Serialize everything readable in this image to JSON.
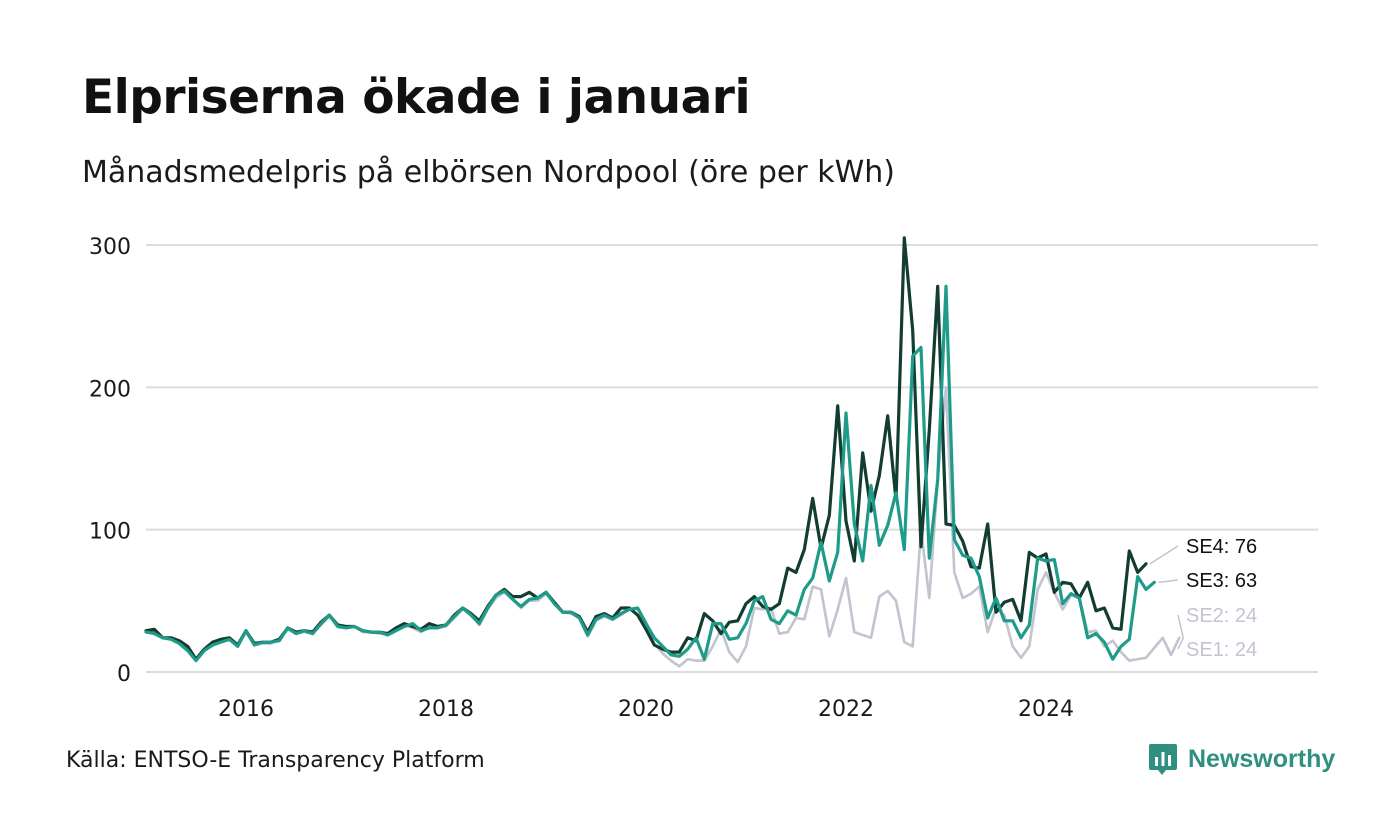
{
  "title": "Elpriserna ökade i januari",
  "subtitle": "Månadsmedelpris på elbörsen Nordpool (öre per kWh)",
  "source": "Källa: ENTSO-E Transparency Platform",
  "brand": {
    "name": "Newsworthy",
    "icon": "newsworthy-logo-icon",
    "color": "#2f8f80"
  },
  "chart_data": {
    "type": "line",
    "x_start": "2015-01",
    "x_interval": "month",
    "x_ticks": [
      "2016",
      "2018",
      "2020",
      "2022",
      "2024"
    ],
    "y_ticks": [
      "0",
      "100",
      "200",
      "300"
    ],
    "ylim": [
      0,
      300
    ],
    "grid": true,
    "legend": "direct labels at line ends",
    "series": [
      {
        "name": "SE2",
        "end_label": "SE2: 24",
        "color": "#c4c4d0",
        "values": [
          29,
          28,
          24,
          24,
          21,
          15,
          8,
          15,
          19,
          21,
          23,
          18,
          28,
          19,
          20,
          20,
          23,
          30,
          27,
          28,
          27,
          33,
          39,
          33,
          31,
          32,
          28,
          28,
          27,
          27,
          30,
          33,
          31,
          28,
          32,
          31,
          32,
          38,
          44,
          41,
          33,
          44,
          52,
          56,
          51,
          45,
          50,
          50,
          55,
          48,
          42,
          41,
          38,
          25,
          36,
          39,
          37,
          40,
          44,
          44,
          35,
          20,
          13,
          8,
          4,
          9,
          8,
          8,
          18,
          30,
          14,
          7,
          18,
          45,
          44,
          45,
          27,
          28,
          38,
          37,
          60,
          58,
          25,
          44,
          66,
          28,
          26,
          24,
          53,
          57,
          50,
          21,
          18,
          100,
          52,
          135,
          200,
          70,
          52,
          55,
          60,
          28,
          45,
          40,
          18,
          10,
          18,
          58,
          70,
          56,
          44,
          54,
          52,
          28,
          29,
          18,
          22,
          14,
          8,
          9,
          10,
          17,
          24,
          12,
          24
        ]
      },
      {
        "name": "SE1",
        "end_label": "SE1: 24",
        "color": "#c4c4d0",
        "values": [
          29,
          28,
          24,
          24,
          21,
          15,
          8,
          15,
          19,
          21,
          23,
          18,
          28,
          19,
          20,
          20,
          23,
          30,
          27,
          28,
          27,
          33,
          39,
          33,
          31,
          32,
          28,
          28,
          27,
          27,
          30,
          33,
          31,
          28,
          32,
          31,
          32,
          38,
          44,
          41,
          33,
          44,
          52,
          56,
          51,
          45,
          50,
          50,
          55,
          48,
          42,
          41,
          38,
          25,
          36,
          39,
          37,
          40,
          44,
          44,
          35,
          20,
          13,
          8,
          4,
          9,
          8,
          8,
          18,
          30,
          14,
          7,
          18,
          45,
          44,
          45,
          27,
          28,
          38,
          37,
          60,
          58,
          25,
          44,
          66,
          28,
          26,
          24,
          53,
          57,
          50,
          21,
          18,
          100,
          52,
          135,
          200,
          70,
          52,
          55,
          60,
          28,
          45,
          40,
          18,
          10,
          18,
          58,
          70,
          56,
          44,
          54,
          52,
          28,
          29,
          18,
          22,
          14,
          8,
          9,
          10,
          17,
          24,
          12,
          24
        ]
      },
      {
        "name": "SE4",
        "end_label": "SE4: 76",
        "color": "#123d30",
        "values": [
          29,
          30,
          24,
          24,
          22,
          18,
          9,
          16,
          21,
          23,
          24,
          19,
          29,
          20,
          21,
          21,
          23,
          31,
          28,
          29,
          28,
          35,
          40,
          33,
          32,
          32,
          29,
          28,
          28,
          27,
          31,
          34,
          32,
          30,
          34,
          32,
          33,
          40,
          45,
          41,
          36,
          46,
          54,
          58,
          53,
          53,
          56,
          52,
          56,
          49,
          42,
          42,
          39,
          28,
          39,
          41,
          38,
          45,
          45,
          40,
          30,
          19,
          16,
          14,
          14,
          24,
          22,
          41,
          36,
          27,
          35,
          36,
          48,
          53,
          46,
          44,
          48,
          73,
          70,
          86,
          122,
          87,
          110,
          187,
          106,
          78,
          154,
          113,
          138,
          180,
          121,
          305,
          240,
          88,
          170,
          271,
          104,
          103,
          92,
          74,
          73,
          104,
          42,
          49,
          51,
          36,
          84,
          80,
          83,
          56,
          63,
          62,
          52,
          63,
          43,
          45,
          31,
          30,
          85,
          70,
          76
        ]
      },
      {
        "name": "SE3",
        "end_label": "SE3: 63",
        "color": "#1f9b8a",
        "values": [
          28,
          27,
          24,
          23,
          20,
          15,
          8,
          15,
          19,
          21,
          23,
          18,
          29,
          19,
          21,
          21,
          22,
          31,
          27,
          29,
          27,
          34,
          40,
          32,
          31,
          32,
          29,
          28,
          28,
          26,
          29,
          32,
          34,
          29,
          31,
          31,
          33,
          39,
          45,
          40,
          34,
          45,
          54,
          57,
          51,
          46,
          51,
          52,
          56,
          48,
          42,
          42,
          38,
          26,
          37,
          40,
          37,
          41,
          44,
          45,
          34,
          24,
          18,
          12,
          11,
          16,
          24,
          9,
          34,
          34,
          23,
          24,
          34,
          50,
          53,
          37,
          34,
          43,
          40,
          58,
          66,
          91,
          64,
          84,
          182,
          104,
          78,
          131,
          89,
          103,
          126,
          86,
          222,
          228,
          80,
          135,
          271,
          93,
          82,
          80,
          67,
          38,
          52,
          36,
          36,
          24,
          33,
          80,
          78,
          79,
          48,
          55,
          52,
          24,
          27,
          21,
          9,
          18,
          23,
          67,
          58,
          63
        ]
      }
    ]
  }
}
